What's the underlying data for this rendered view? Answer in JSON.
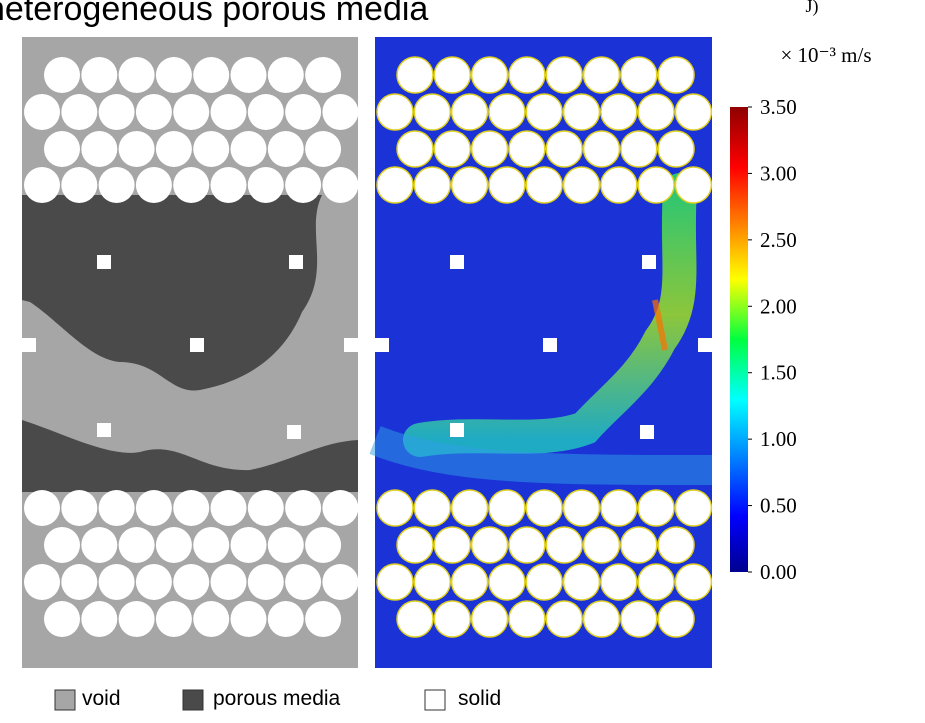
{
  "header": {
    "title": "heterogeneous porous media"
  },
  "colorbar": {
    "corner_label": "J)",
    "unit": "× 10⁻³ m/s",
    "lim": [
      0,
      3.5
    ],
    "ticks": [
      {
        "value": 3.5,
        "label": "3.50"
      },
      {
        "value": 3,
        "label": "3.00"
      },
      {
        "value": 2.5,
        "label": "2.50"
      },
      {
        "value": 2,
        "label": "2.00"
      },
      {
        "value": 1.5,
        "label": "1.50"
      },
      {
        "value": 1,
        "label": "1.00"
      },
      {
        "value": 0.5,
        "label": "0.50"
      },
      {
        "value": 0,
        "label": "0.00"
      }
    ]
  },
  "legend": [
    {
      "label": "void",
      "color": "#a6a6a6"
    },
    {
      "label": "porous media",
      "color": "#4a4a4a"
    },
    {
      "label": "solid",
      "color": "#ffffff"
    }
  ]
}
